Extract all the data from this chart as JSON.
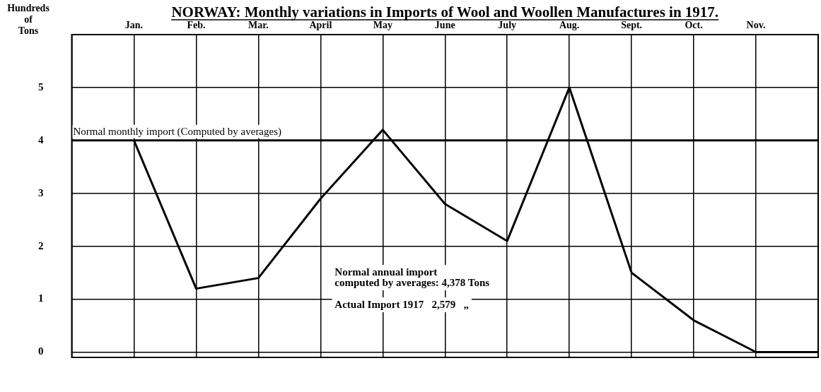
{
  "chart_data": {
    "type": "line",
    "title": "NORWAY: Monthly variations in Imports of Wool and Woollen Manufactures in 1917.",
    "ylabel": "Hundreds\nof\nTons",
    "categories": [
      null,
      "Jan.",
      "Feb.",
      "Mar.",
      "April",
      "May",
      "June",
      "July",
      "Aug.",
      "Sept.",
      "Oct.",
      "Nov.",
      null
    ],
    "series": [
      {
        "color": "#000000",
        "values": [
          null,
          4.0,
          1.2,
          1.4,
          2.9,
          4.2,
          2.8,
          2.1,
          5.0,
          1.5,
          0.6,
          0,
          0
        ]
      }
    ],
    "ylim": [
      -0.1,
      6
    ],
    "yticks": [
      0,
      1,
      2,
      3,
      4,
      5
    ],
    "grid": true,
    "legend": false,
    "marker": "none",
    "line_style": "solid",
    "ref_lines": [
      {
        "axis": "y",
        "value": 4,
        "label": "Normal monthly import (Computed by averages)",
        "color": "#000000"
      }
    ],
    "annotations": [
      "Normal annual import\ncomputed by averages: 4,378 Tons",
      "Actual Import 1917   2,579   „"
    ]
  }
}
